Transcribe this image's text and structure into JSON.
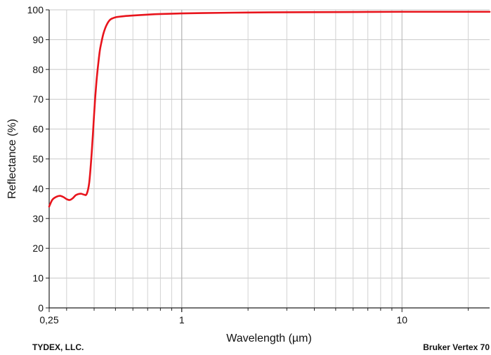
{
  "chart_data": {
    "type": "line",
    "title": "",
    "xlabel": "Wavelength (µm)",
    "ylabel": "Reflectance (%)",
    "x_scale": "log",
    "xlim": [
      0.25,
      25
    ],
    "ylim": [
      0,
      100
    ],
    "grid": true,
    "x_tick_labels": [
      {
        "value": 0.25,
        "label": "0,25"
      },
      {
        "value": 1,
        "label": "1"
      },
      {
        "value": 10,
        "label": "10"
      }
    ],
    "y_ticks": [
      0,
      10,
      20,
      30,
      40,
      50,
      60,
      70,
      80,
      90,
      100
    ],
    "series": [
      {
        "color": "#e8141c",
        "x": [
          0.25,
          0.255,
          0.26,
          0.27,
          0.28,
          0.29,
          0.3,
          0.31,
          0.32,
          0.33,
          0.34,
          0.35,
          0.36,
          0.37,
          0.38,
          0.39,
          0.4,
          0.405,
          0.41,
          0.415,
          0.42,
          0.425,
          0.43,
          0.44,
          0.45,
          0.46,
          0.47,
          0.48,
          0.5,
          0.52,
          0.55,
          0.6,
          0.7,
          0.8,
          1.0,
          1.5,
          2,
          3,
          5,
          7,
          10,
          15,
          20,
          25
        ],
        "y": [
          34.0,
          35.5,
          36.5,
          37.3,
          37.6,
          37.2,
          36.5,
          36.2,
          36.8,
          37.8,
          38.2,
          38.3,
          38.0,
          38.2,
          42,
          52,
          65,
          71,
          76,
          80,
          83.5,
          86.5,
          88.5,
          91.8,
          94,
          95.5,
          96.5,
          97.0,
          97.5,
          97.7,
          97.9,
          98.1,
          98.4,
          98.6,
          98.8,
          99.0,
          99.1,
          99.2,
          99.25,
          99.3,
          99.35,
          99.35,
          99.35,
          99.35
        ]
      }
    ]
  },
  "footer": {
    "left": "TYDEX, LLC.",
    "right": "Bruker Vertex 70"
  }
}
